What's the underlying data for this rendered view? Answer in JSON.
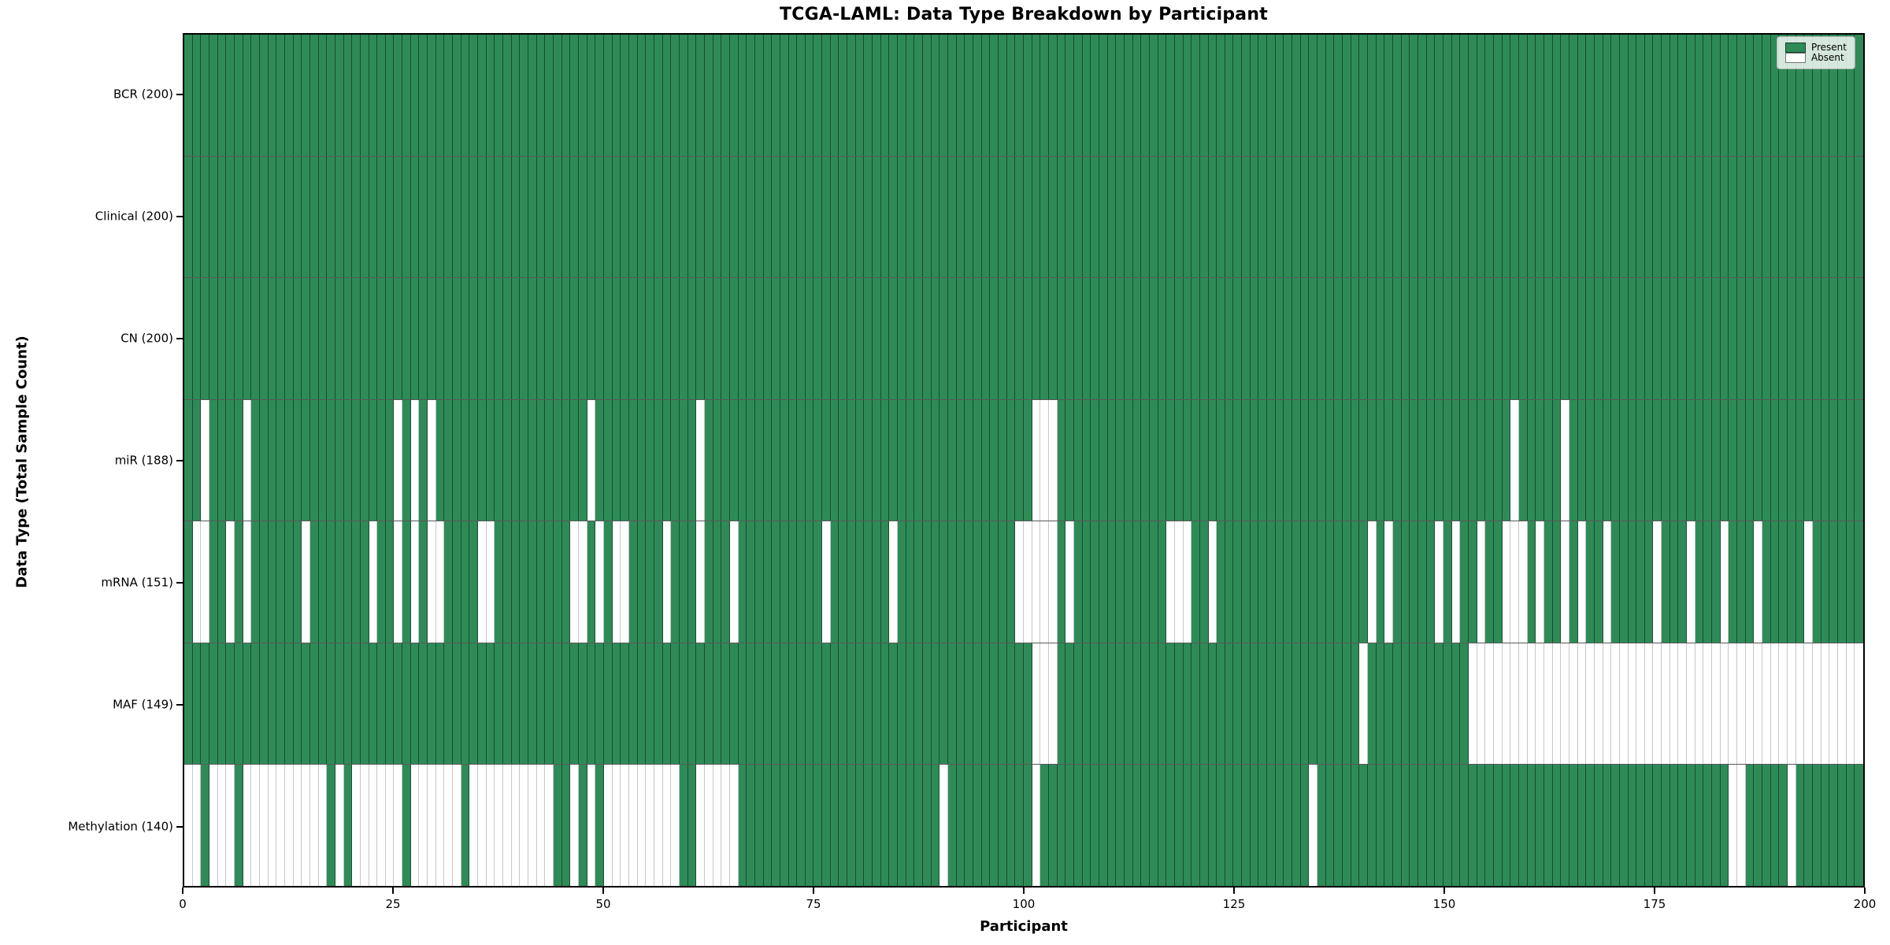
{
  "chart_data": {
    "type": "heatmap",
    "title": "TCGA-LAML: Data Type Breakdown by Participant",
    "xlabel": "Participant",
    "ylabel": "Data Type (Total Sample Count)",
    "n_participants": 200,
    "x_ticks": [
      0,
      25,
      50,
      75,
      100,
      125,
      150,
      175,
      200
    ],
    "grid": false,
    "legend_position": "upper right",
    "colors": {
      "present": "#2e8b57",
      "absent": "#ffffff"
    },
    "legend": [
      {
        "label": "Present",
        "key": "present"
      },
      {
        "label": "Absent",
        "key": "absent"
      }
    ],
    "rows": [
      {
        "label": "BCR (200)",
        "data_type": "BCR",
        "present_count": 200,
        "absent_participants": []
      },
      {
        "label": "Clinical (200)",
        "data_type": "Clinical",
        "present_count": 200,
        "absent_participants": []
      },
      {
        "label": "CN (200)",
        "data_type": "CN",
        "present_count": 200,
        "absent_participants": []
      },
      {
        "label": "miR (188)",
        "data_type": "miR",
        "present_count": 188,
        "absent_participants": [
          2,
          7,
          25,
          27,
          29,
          48,
          61,
          101,
          102,
          103,
          158,
          164
        ]
      },
      {
        "label": "mRNA (151)",
        "data_type": "mRNA",
        "present_count": 151,
        "absent_participants": [
          1,
          2,
          5,
          7,
          14,
          22,
          25,
          27,
          29,
          30,
          35,
          36,
          46,
          47,
          49,
          51,
          52,
          57,
          61,
          65,
          76,
          84,
          99,
          100,
          101,
          102,
          103,
          105,
          117,
          118,
          119,
          122,
          141,
          143,
          149,
          151,
          154,
          157,
          158,
          159,
          161,
          164,
          166,
          169,
          175,
          179,
          183,
          187,
          193
        ]
      },
      {
        "label": "MAF (149)",
        "data_type": "MAF",
        "present_count": 149,
        "absent_participants": [
          101,
          102,
          103,
          140,
          153,
          154,
          155,
          156,
          157,
          158,
          159,
          160,
          161,
          162,
          163,
          164,
          165,
          166,
          167,
          168,
          169,
          170,
          171,
          172,
          173,
          174,
          175,
          176,
          177,
          178,
          179,
          180,
          181,
          182,
          183,
          184,
          185,
          186,
          187,
          188,
          189,
          190,
          191,
          192,
          193,
          194,
          195,
          196,
          197,
          198,
          199
        ]
      },
      {
        "label": "Methylation (140)",
        "data_type": "Methylation",
        "present_count": 140,
        "absent_participants": [
          0,
          1,
          3,
          4,
          5,
          7,
          8,
          9,
          10,
          11,
          12,
          13,
          14,
          15,
          16,
          18,
          20,
          21,
          22,
          23,
          24,
          25,
          27,
          28,
          29,
          30,
          31,
          32,
          34,
          35,
          36,
          37,
          38,
          39,
          40,
          41,
          42,
          43,
          46,
          48,
          50,
          51,
          52,
          53,
          54,
          55,
          56,
          57,
          58,
          61,
          62,
          63,
          64,
          65,
          90,
          101,
          134,
          184,
          185,
          191
        ]
      }
    ]
  }
}
